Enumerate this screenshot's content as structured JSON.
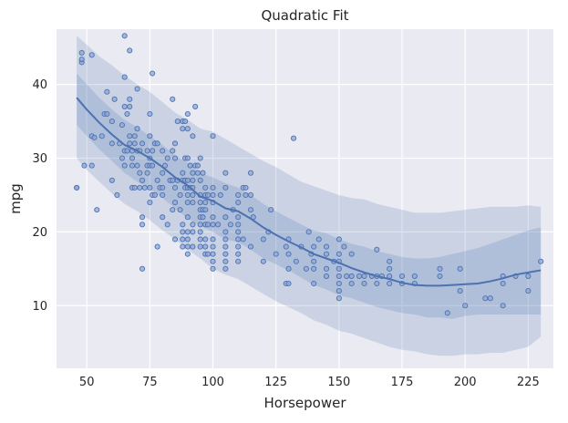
{
  "chart_data": {
    "type": "scatter",
    "title": "Quadratic Fit",
    "xlabel": "Horsepower",
    "ylabel": "mpg",
    "xlim": [
      38,
      235
    ],
    "ylim": [
      1.5,
      47.5
    ],
    "xticks": [
      50,
      75,
      100,
      125,
      150,
      175,
      200,
      225
    ],
    "yticks": [
      10,
      20,
      30,
      40
    ],
    "grid": true,
    "colors": {
      "background": "#eaeaf2",
      "grid": "#ffffff",
      "marker_fill": "#8fa7d6",
      "marker_edge": "#4c72b0",
      "fit_line": "#4c72b0",
      "band": "#4c72b0"
    },
    "scatter_points": [
      [
        46,
        26
      ],
      [
        46,
        26
      ],
      [
        48,
        43
      ],
      [
        48,
        43.4
      ],
      [
        48,
        44.3
      ],
      [
        49,
        29
      ],
      [
        52,
        29
      ],
      [
        52,
        33
      ],
      [
        53,
        32.8
      ],
      [
        52,
        44
      ],
      [
        54,
        23
      ],
      [
        56,
        33
      ],
      [
        57,
        36
      ],
      [
        58,
        36
      ],
      [
        58,
        39
      ],
      [
        60,
        35
      ],
      [
        60,
        27
      ],
      [
        61,
        38
      ],
      [
        60,
        32
      ],
      [
        62,
        25
      ],
      [
        63,
        32
      ],
      [
        64,
        30
      ],
      [
        64,
        34.5
      ],
      [
        65,
        46.6
      ],
      [
        65,
        41
      ],
      [
        65,
        37
      ],
      [
        65,
        31
      ],
      [
        65,
        29
      ],
      [
        66,
        36
      ],
      [
        66,
        31
      ],
      [
        67,
        44.6
      ],
      [
        67,
        37
      ],
      [
        67,
        38
      ],
      [
        67,
        32
      ],
      [
        67,
        33
      ],
      [
        68,
        30
      ],
      [
        68,
        26
      ],
      [
        68,
        29
      ],
      [
        68,
        31
      ],
      [
        69,
        33
      ],
      [
        69,
        32
      ],
      [
        69,
        26
      ],
      [
        70,
        39.4
      ],
      [
        70,
        34
      ],
      [
        70,
        31
      ],
      [
        70,
        29
      ],
      [
        71,
        31
      ],
      [
        71,
        26
      ],
      [
        71,
        28
      ],
      [
        72,
        15
      ],
      [
        72,
        32
      ],
      [
        72,
        27
      ],
      [
        72,
        22
      ],
      [
        72,
        21
      ],
      [
        73,
        26
      ],
      [
        74,
        29
      ],
      [
        74,
        31
      ],
      [
        74,
        28
      ],
      [
        75,
        36
      ],
      [
        75,
        33
      ],
      [
        75,
        30
      ],
      [
        75,
        29
      ],
      [
        75,
        26
      ],
      [
        75,
        24
      ],
      [
        76,
        31
      ],
      [
        76,
        41.5
      ],
      [
        76,
        25
      ],
      [
        76,
        29
      ],
      [
        77,
        32
      ],
      [
        77,
        25
      ],
      [
        78,
        32
      ],
      [
        78,
        27
      ],
      [
        78,
        18
      ],
      [
        79,
        26
      ],
      [
        80,
        31
      ],
      [
        80,
        28
      ],
      [
        80,
        26
      ],
      [
        80,
        25
      ],
      [
        80,
        22
      ],
      [
        81,
        29
      ],
      [
        82,
        30
      ],
      [
        82,
        21
      ],
      [
        83,
        27
      ],
      [
        84,
        38
      ],
      [
        84,
        31
      ],
      [
        84,
        27
      ],
      [
        84,
        23
      ],
      [
        85,
        32
      ],
      [
        85,
        30
      ],
      [
        85,
        26
      ],
      [
        85,
        24
      ],
      [
        85,
        19
      ],
      [
        86,
        27
      ],
      [
        86,
        35
      ],
      [
        87,
        25
      ],
      [
        87,
        23
      ],
      [
        88,
        35
      ],
      [
        88,
        34
      ],
      [
        88,
        28
      ],
      [
        88,
        27
      ],
      [
        88,
        21
      ],
      [
        88,
        20
      ],
      [
        88,
        19
      ],
      [
        88,
        18
      ],
      [
        89,
        35
      ],
      [
        89,
        30
      ],
      [
        89,
        27
      ],
      [
        89,
        26
      ],
      [
        90,
        36
      ],
      [
        90,
        34
      ],
      [
        90,
        30
      ],
      [
        90,
        27
      ],
      [
        90,
        26
      ],
      [
        90,
        25
      ],
      [
        90,
        24
      ],
      [
        90,
        22
      ],
      [
        90,
        20
      ],
      [
        90,
        19
      ],
      [
        90,
        18
      ],
      [
        90,
        17
      ],
      [
        91,
        29
      ],
      [
        91,
        26
      ],
      [
        92,
        33
      ],
      [
        92,
        28
      ],
      [
        92,
        27
      ],
      [
        92,
        26
      ],
      [
        92,
        25
      ],
      [
        92,
        24
      ],
      [
        92,
        21
      ],
      [
        92,
        20
      ],
      [
        92,
        18
      ],
      [
        93,
        37
      ],
      [
        93,
        29
      ],
      [
        94,
        29
      ],
      [
        94,
        28
      ],
      [
        95,
        30
      ],
      [
        95,
        27
      ],
      [
        95,
        25
      ],
      [
        95,
        24
      ],
      [
        95,
        23
      ],
      [
        95,
        22
      ],
      [
        95,
        21
      ],
      [
        95,
        20
      ],
      [
        95,
        19
      ],
      [
        95,
        18
      ],
      [
        96,
        23
      ],
      [
        96,
        22
      ],
      [
        96,
        28
      ],
      [
        97,
        26
      ],
      [
        97,
        25
      ],
      [
        97,
        23
      ],
      [
        97,
        24
      ],
      [
        97,
        21
      ],
      [
        97,
        19
      ],
      [
        97,
        18
      ],
      [
        97,
        17
      ],
      [
        98,
        25
      ],
      [
        98,
        21
      ],
      [
        98,
        17
      ],
      [
        100,
        33
      ],
      [
        100,
        26
      ],
      [
        100,
        25
      ],
      [
        100,
        24
      ],
      [
        100,
        22
      ],
      [
        100,
        21
      ],
      [
        100,
        19
      ],
      [
        100,
        18
      ],
      [
        100,
        17
      ],
      [
        100,
        16
      ],
      [
        100,
        15
      ],
      [
        102,
        21
      ],
      [
        103,
        25
      ],
      [
        105,
        28
      ],
      [
        105,
        26
      ],
      [
        105,
        22
      ],
      [
        105,
        20
      ],
      [
        105,
        19
      ],
      [
        105,
        18
      ],
      [
        105,
        17
      ],
      [
        105,
        16
      ],
      [
        105,
        15
      ],
      [
        107,
        21
      ],
      [
        108,
        23
      ],
      [
        110,
        25
      ],
      [
        110,
        24
      ],
      [
        110,
        22
      ],
      [
        110,
        21
      ],
      [
        110,
        20
      ],
      [
        110,
        19
      ],
      [
        110,
        18
      ],
      [
        110,
        17
      ],
      [
        110,
        16
      ],
      [
        112,
        26
      ],
      [
        112,
        19
      ],
      [
        113,
        25
      ],
      [
        113,
        26
      ],
      [
        115,
        28
      ],
      [
        115,
        25
      ],
      [
        115,
        23
      ],
      [
        115,
        18
      ],
      [
        116,
        22
      ],
      [
        120,
        19
      ],
      [
        120,
        16
      ],
      [
        122,
        20
      ],
      [
        123,
        23
      ],
      [
        125,
        17
      ],
      [
        129,
        13
      ],
      [
        129,
        18
      ],
      [
        130,
        19
      ],
      [
        130,
        17
      ],
      [
        130,
        15
      ],
      [
        130,
        13
      ],
      [
        132,
        32.7
      ],
      [
        133,
        16
      ],
      [
        135,
        18
      ],
      [
        137,
        15
      ],
      [
        138,
        20
      ],
      [
        139,
        17
      ],
      [
        140,
        18
      ],
      [
        140,
        16
      ],
      [
        140,
        15
      ],
      [
        140,
        13
      ],
      [
        142,
        19
      ],
      [
        145,
        18
      ],
      [
        145,
        15
      ],
      [
        145,
        14
      ],
      [
        145,
        17
      ],
      [
        148,
        16
      ],
      [
        150,
        19
      ],
      [
        150,
        17
      ],
      [
        150,
        16
      ],
      [
        150,
        15
      ],
      [
        150,
        14
      ],
      [
        150,
        13
      ],
      [
        150,
        12
      ],
      [
        150,
        11
      ],
      [
        152,
        18
      ],
      [
        153,
        14
      ],
      [
        155,
        17
      ],
      [
        155,
        14
      ],
      [
        155,
        13
      ],
      [
        158,
        14
      ],
      [
        160,
        13
      ],
      [
        160,
        14
      ],
      [
        163,
        14
      ],
      [
        165,
        17.6
      ],
      [
        165,
        14
      ],
      [
        165,
        13
      ],
      [
        167,
        14
      ],
      [
        170,
        16
      ],
      [
        170,
        15
      ],
      [
        170,
        14
      ],
      [
        170,
        13
      ],
      [
        175,
        13
      ],
      [
        175,
        14
      ],
      [
        180,
        14
      ],
      [
        180,
        13
      ],
      [
        190,
        15
      ],
      [
        190,
        14
      ],
      [
        193,
        9
      ],
      [
        198,
        12
      ],
      [
        198,
        15
      ],
      [
        200,
        10
      ],
      [
        208,
        11
      ],
      [
        210,
        11
      ],
      [
        215,
        14
      ],
      [
        215,
        13
      ],
      [
        215,
        10
      ],
      [
        220,
        14
      ],
      [
        225,
        14
      ],
      [
        225,
        12
      ],
      [
        230,
        16
      ]
    ],
    "fit_line": [
      [
        46,
        38.2
      ],
      [
        50,
        36.6
      ],
      [
        55,
        34.8
      ],
      [
        60,
        33.2
      ],
      [
        65,
        31.8
      ],
      [
        70,
        31.0
      ],
      [
        75,
        30.0
      ],
      [
        80,
        28.8
      ],
      [
        85,
        27.4
      ],
      [
        90,
        26.3
      ],
      [
        95,
        24.8
      ],
      [
        100,
        24.2
      ],
      [
        105,
        23.2
      ],
      [
        110,
        22.8
      ],
      [
        115,
        21.8
      ],
      [
        120,
        20.6
      ],
      [
        125,
        19.6
      ],
      [
        130,
        18.7
      ],
      [
        135,
        17.9
      ],
      [
        140,
        17.0
      ],
      [
        145,
        16.4
      ],
      [
        150,
        15.8
      ],
      [
        155,
        15.1
      ],
      [
        160,
        14.5
      ],
      [
        165,
        14.0
      ],
      [
        170,
        13.6
      ],
      [
        175,
        13.1
      ],
      [
        180,
        12.8
      ],
      [
        185,
        12.7
      ],
      [
        190,
        12.7
      ],
      [
        195,
        12.8
      ],
      [
        200,
        12.9
      ],
      [
        205,
        13.0
      ],
      [
        210,
        13.3
      ],
      [
        215,
        13.7
      ],
      [
        220,
        14.2
      ],
      [
        225,
        14.5
      ],
      [
        230,
        14.8
      ]
    ],
    "inner_band": [
      [
        46,
        41.5,
        34.5
      ],
      [
        50,
        40.0,
        33.0
      ],
      [
        55,
        38.2,
        31.2
      ],
      [
        60,
        36.6,
        29.6
      ],
      [
        65,
        35.2,
        28.0
      ],
      [
        70,
        34.2,
        26.8
      ],
      [
        75,
        33.0,
        25.8
      ],
      [
        80,
        31.8,
        24.6
      ],
      [
        85,
        30.4,
        23.2
      ],
      [
        90,
        29.4,
        21.8
      ],
      [
        95,
        28.0,
        20.8
      ],
      [
        100,
        27.4,
        20.0
      ],
      [
        105,
        26.6,
        19.0
      ],
      [
        110,
        26.0,
        18.6
      ],
      [
        115,
        25.0,
        17.6
      ],
      [
        120,
        23.8,
        16.4
      ],
      [
        125,
        22.8,
        15.6
      ],
      [
        130,
        21.9,
        14.8
      ],
      [
        135,
        21.0,
        13.8
      ],
      [
        140,
        20.2,
        12.8
      ],
      [
        145,
        19.8,
        12.2
      ],
      [
        150,
        19.0,
        11.4
      ],
      [
        155,
        18.4,
        11.0
      ],
      [
        160,
        18.0,
        10.4
      ],
      [
        165,
        17.4,
        9.8
      ],
      [
        170,
        17.0,
        9.4
      ],
      [
        175,
        16.6,
        9.0
      ],
      [
        180,
        16.4,
        8.8
      ],
      [
        185,
        16.4,
        8.4
      ],
      [
        190,
        16.6,
        8.4
      ],
      [
        195,
        17.0,
        8.2
      ],
      [
        200,
        17.4,
        8.6
      ],
      [
        205,
        17.8,
        8.8
      ],
      [
        210,
        18.4,
        8.8
      ],
      [
        215,
        19.0,
        8.8
      ],
      [
        220,
        19.6,
        8.8
      ],
      [
        225,
        20.2,
        8.8
      ],
      [
        230,
        20.6,
        8.8
      ]
    ],
    "outer_band": [
      [
        46,
        46.6,
        30.0
      ],
      [
        50,
        45.4,
        28.4
      ],
      [
        55,
        43.8,
        26.8
      ],
      [
        60,
        42.6,
        25.2
      ],
      [
        65,
        41.2,
        23.8
      ],
      [
        70,
        40.0,
        22.8
      ],
      [
        75,
        39.0,
        21.6
      ],
      [
        80,
        37.6,
        20.2
      ],
      [
        85,
        36.2,
        19.0
      ],
      [
        90,
        35.2,
        17.6
      ],
      [
        95,
        34.0,
        16.4
      ],
      [
        100,
        33.6,
        15.0
      ],
      [
        105,
        32.6,
        14.2
      ],
      [
        110,
        31.6,
        13.6
      ],
      [
        115,
        30.6,
        12.6
      ],
      [
        120,
        29.6,
        11.6
      ],
      [
        125,
        28.8,
        10.6
      ],
      [
        130,
        27.8,
        9.8
      ],
      [
        135,
        26.8,
        9.0
      ],
      [
        140,
        26.2,
        8.0
      ],
      [
        145,
        25.6,
        7.4
      ],
      [
        150,
        25.0,
        6.6
      ],
      [
        155,
        24.6,
        6.2
      ],
      [
        160,
        24.4,
        5.6
      ],
      [
        165,
        23.8,
        5.0
      ],
      [
        170,
        23.4,
        4.4
      ],
      [
        175,
        23.0,
        4.0
      ],
      [
        180,
        22.6,
        3.8
      ],
      [
        185,
        22.6,
        3.4
      ],
      [
        190,
        22.6,
        3.2
      ],
      [
        195,
        22.8,
        3.2
      ],
      [
        200,
        23.0,
        3.4
      ],
      [
        205,
        23.2,
        3.4
      ],
      [
        210,
        23.4,
        3.6
      ],
      [
        215,
        23.4,
        3.6
      ],
      [
        220,
        23.4,
        4.0
      ],
      [
        225,
        23.6,
        4.4
      ],
      [
        230,
        23.4,
        5.8
      ]
    ]
  }
}
